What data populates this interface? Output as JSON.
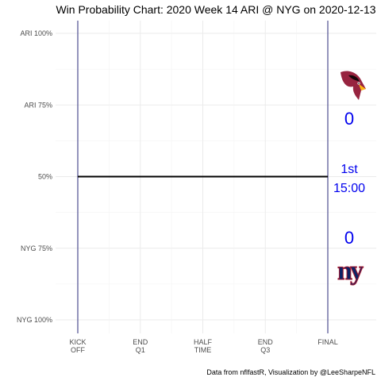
{
  "chart_data": {
    "type": "line",
    "title": "Win Probability Chart: 2020 Week 14 ARI @ NYG on 2020-12-13",
    "caption": "Data from nflfastR, Visualization by @LeeSharpeNFL",
    "xlabel": "",
    "ylabel": "",
    "x_tick_labels": [
      "KICK\nOFF",
      "END\nQ1",
      "HALF\nTIME",
      "END\nQ3",
      "FINAL"
    ],
    "y_tick_labels": [
      "ARI 100%",
      "ARI 75%",
      "50%",
      "NYG 75%",
      "NYG 100%"
    ],
    "y_tick_values": [
      1.0,
      0.75,
      0.5,
      0.25,
      0.0
    ],
    "xlim": [
      0,
      3600
    ],
    "ylim": [
      0,
      1
    ],
    "grid": true,
    "series": [
      {
        "values": [
          0.5,
          0.5
        ],
        "x": [
          0,
          3600
        ],
        "color": "#000000"
      }
    ],
    "reference_lines_x": [
      0,
      3600
    ],
    "reference_line_color": "#2a2a7a",
    "annotations": {
      "away_team_logo": "cardinals-logo",
      "away_score": "0",
      "home_team_logo": "giants-logo",
      "home_score": "0",
      "quarter": "1st",
      "clock": "15:00",
      "text_color": "#0000ee"
    }
  }
}
